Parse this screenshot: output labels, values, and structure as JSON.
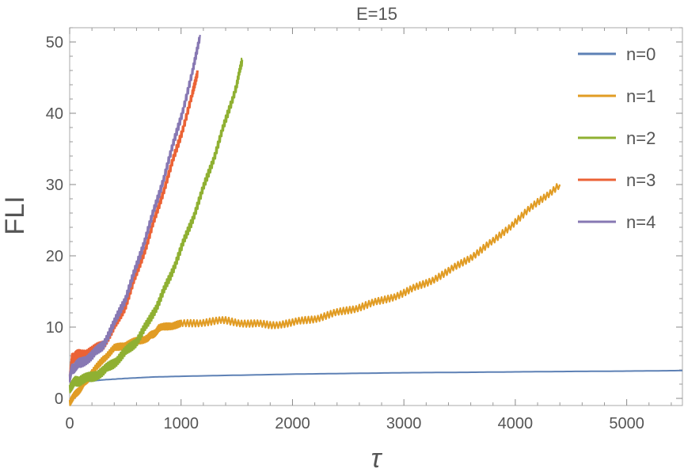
{
  "chart_data": {
    "type": "line",
    "title": "E=15",
    "xlabel": "τ",
    "ylabel": "FLI",
    "xlim": [
      0,
      5500
    ],
    "ylim": [
      -1,
      52
    ],
    "x_ticks": [
      0,
      1000,
      2000,
      3000,
      4000,
      5000
    ],
    "y_ticks": [
      0,
      10,
      20,
      30,
      40,
      50
    ],
    "grid": false,
    "legend_position": "top-right",
    "series": [
      {
        "name": "n=0",
        "color": "#5E81B5",
        "x": [
          0,
          25,
          50,
          100,
          200,
          300,
          500,
          750,
          1000,
          1500,
          2000,
          2500,
          3000,
          3500,
          4000,
          4500,
          5000,
          5500
        ],
        "y": [
          1.2,
          1.8,
          2.0,
          2.2,
          2.45,
          2.6,
          2.8,
          3.0,
          3.1,
          3.25,
          3.4,
          3.5,
          3.6,
          3.65,
          3.72,
          3.78,
          3.83,
          3.9
        ]
      },
      {
        "name": "n=1",
        "color": "#E19C24",
        "x": [
          0,
          50,
          100,
          150,
          200,
          300,
          400,
          500,
          600,
          700,
          750,
          800,
          900,
          1000,
          1200,
          1400,
          1600,
          1800,
          2000,
          2200,
          2400,
          2600,
          2800,
          3000,
          3200,
          3400,
          3600,
          3800,
          4000,
          4200,
          4400
        ],
        "y": [
          -0.5,
          0.5,
          1.5,
          2.5,
          3.5,
          5.5,
          7.0,
          7.5,
          8.0,
          8.5,
          9.0,
          9.8,
          10.2,
          10.4,
          10.7,
          10.9,
          10.5,
          10.3,
          10.6,
          11.2,
          12.0,
          12.8,
          13.7,
          14.8,
          16.2,
          17.8,
          19.8,
          22.0,
          24.8,
          27.5,
          30.0
        ]
      },
      {
        "name": "n=2",
        "color": "#8FB032",
        "x": [
          0,
          50,
          100,
          200,
          300,
          400,
          500,
          600,
          700,
          800,
          900,
          1000,
          1100,
          1200,
          1300,
          1400,
          1500,
          1550
        ],
        "y": [
          1.5,
          2.3,
          2.6,
          3.0,
          3.8,
          5.0,
          6.5,
          8.0,
          10.5,
          13.5,
          17.0,
          21.0,
          25.0,
          29.5,
          34.0,
          39.0,
          44.0,
          47.5
        ]
      },
      {
        "name": "n=3",
        "color": "#EB6235",
        "x": [
          0,
          20,
          50,
          100,
          200,
          300,
          400,
          500,
          600,
          700,
          800,
          900,
          1000,
          1100,
          1150
        ],
        "y": [
          3.0,
          5.5,
          6.0,
          6.1,
          6.6,
          7.5,
          10.0,
          13.0,
          17.5,
          22.0,
          27.0,
          32.0,
          37.0,
          42.5,
          46.0
        ]
      },
      {
        "name": "n=4",
        "color": "#8778B3",
        "x": [
          0,
          20,
          50,
          100,
          200,
          300,
          400,
          500,
          600,
          700,
          800,
          900,
          1000,
          1100,
          1170
        ],
        "y": [
          3.0,
          4.0,
          4.5,
          5.0,
          6.0,
          7.5,
          10.5,
          14.0,
          18.5,
          23.5,
          28.5,
          34.0,
          39.5,
          45.5,
          51.0
        ]
      }
    ]
  }
}
